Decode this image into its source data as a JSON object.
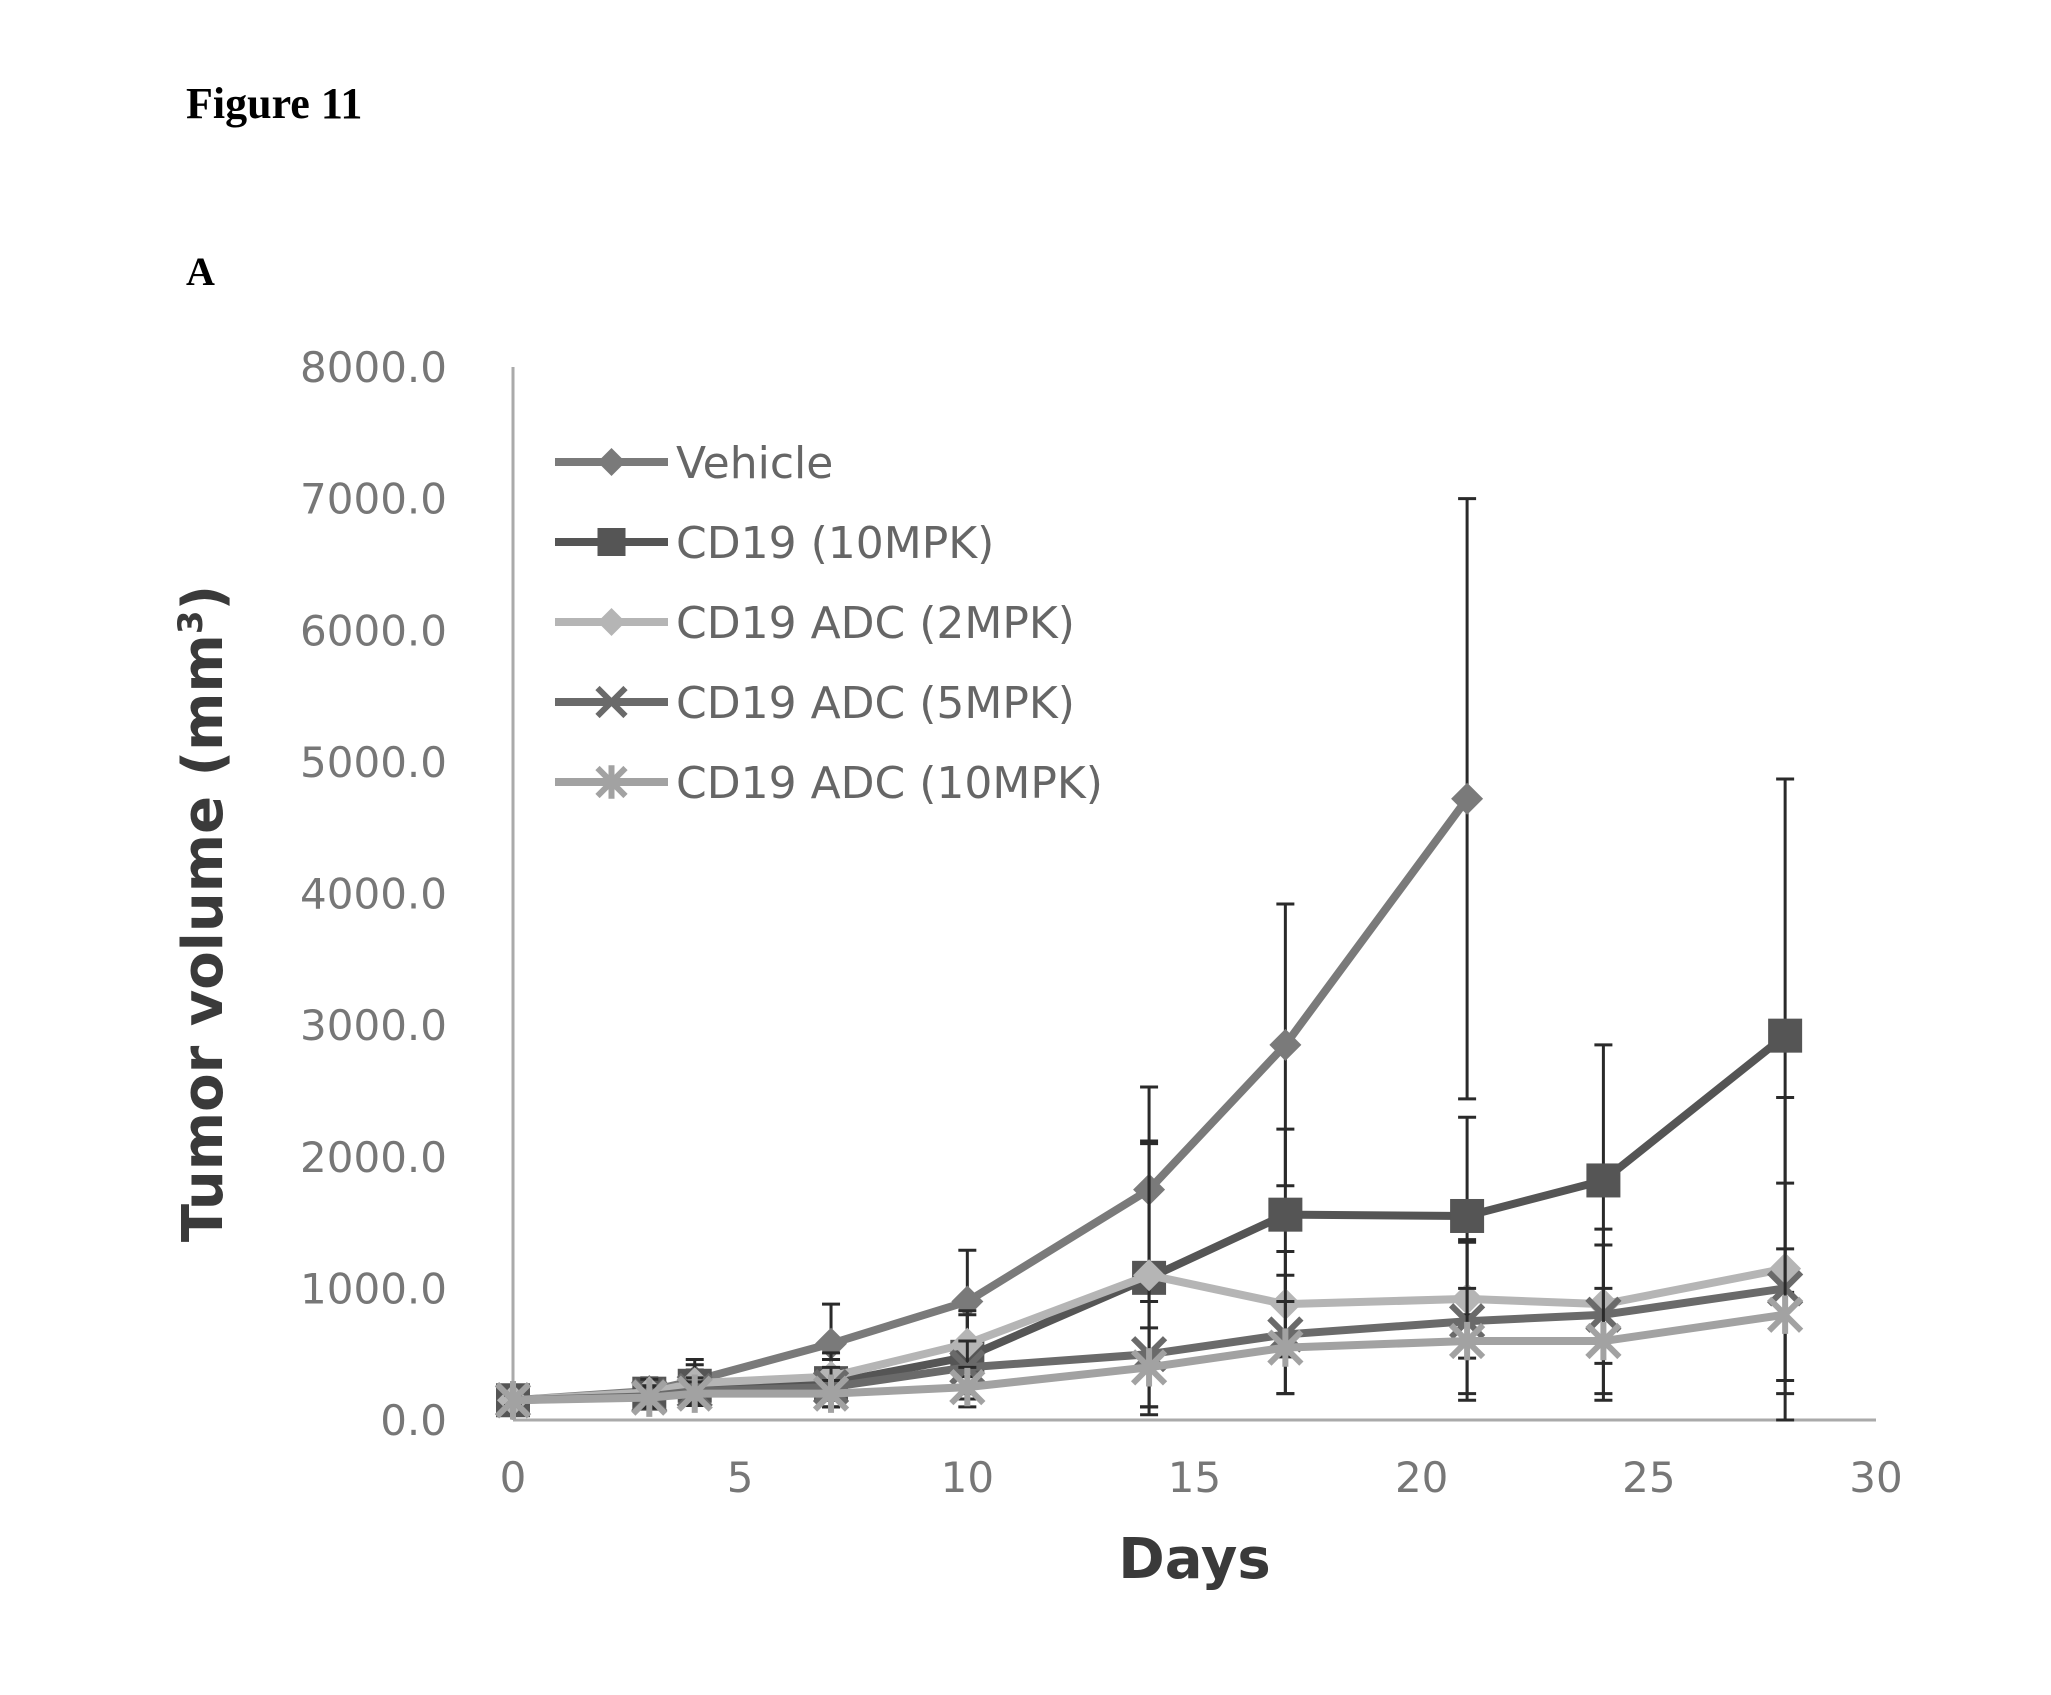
{
  "figure_label": "Figure 11",
  "panel_label": "A",
  "chart_data": {
    "type": "line",
    "title": "",
    "xlabel": "Days",
    "ylabel": "Tumor volume (mm",
    "ylabel_superscript": "3",
    "ylabel_close": ")",
    "xlim": [
      0,
      30
    ],
    "ylim": [
      0,
      8000
    ],
    "x_ticks": [
      0,
      5,
      10,
      15,
      20,
      25,
      30
    ],
    "x_tick_labels": [
      "0",
      "5",
      "10",
      "15",
      "20",
      "25",
      "30"
    ],
    "y_ticks": [
      0,
      1000,
      2000,
      3000,
      4000,
      5000,
      6000,
      7000,
      8000
    ],
    "y_tick_labels": [
      "0.0",
      "1000.0",
      "2000.0",
      "3000.0",
      "4000.0",
      "5000.0",
      "6000.0",
      "7000.0",
      "8000.0"
    ],
    "grid": false,
    "legend_position": "top-left",
    "series": [
      {
        "name": "Vehicle",
        "color": "#7a7a7a",
        "marker": "diamond",
        "x": [
          0,
          3,
          4,
          7,
          10,
          14,
          17,
          21
        ],
        "y": [
          150,
          220,
          300,
          580,
          900,
          1750,
          2850,
          4720
        ],
        "err": [
          40,
          100,
          160,
          300,
          390,
          780,
          1070,
          2280
        ]
      },
      {
        "name": "CD19 (10MPK)",
        "color": "#555555",
        "marker": "square",
        "x": [
          0,
          3,
          4,
          7,
          10,
          14,
          17,
          21,
          24,
          28
        ],
        "y": [
          150,
          200,
          260,
          280,
          480,
          1080,
          1560,
          1550,
          1820,
          2920
        ],
        "err": [
          40,
          100,
          120,
          180,
          320,
          1040,
          650,
          750,
          1030,
          1950
        ]
      },
      {
        "name": "CD19 ADC (2MPK)",
        "color": "#b5b5b5",
        "marker": "diamond",
        "x": [
          0,
          3,
          4,
          7,
          10,
          14,
          17,
          21,
          24,
          28
        ],
        "y": [
          150,
          210,
          280,
          330,
          580,
          1100,
          880,
          920,
          880,
          1150
        ],
        "err": [
          40,
          100,
          140,
          180,
          250,
          1000,
          400,
          450,
          450,
          1300
        ]
      },
      {
        "name": "CD19 ADC (5MPK)",
        "color": "#6a6a6a",
        "marker": "cross",
        "x": [
          0,
          3,
          4,
          7,
          10,
          14,
          17,
          21,
          24,
          28
        ],
        "y": [
          150,
          180,
          220,
          250,
          400,
          500,
          650,
          750,
          800,
          1000
        ],
        "err": [
          40,
          80,
          100,
          150,
          200,
          400,
          450,
          600,
          650,
          800
        ]
      },
      {
        "name": "CD19 ADC (10MPK)",
        "color": "#a2a2a2",
        "marker": "asterisk",
        "x": [
          0,
          3,
          4,
          7,
          10,
          14,
          17,
          21,
          24,
          28
        ],
        "y": [
          150,
          170,
          200,
          200,
          250,
          400,
          550,
          600,
          600,
          800
        ],
        "err": [
          40,
          80,
          90,
          100,
          150,
          300,
          350,
          400,
          400,
          500
        ]
      }
    ]
  }
}
